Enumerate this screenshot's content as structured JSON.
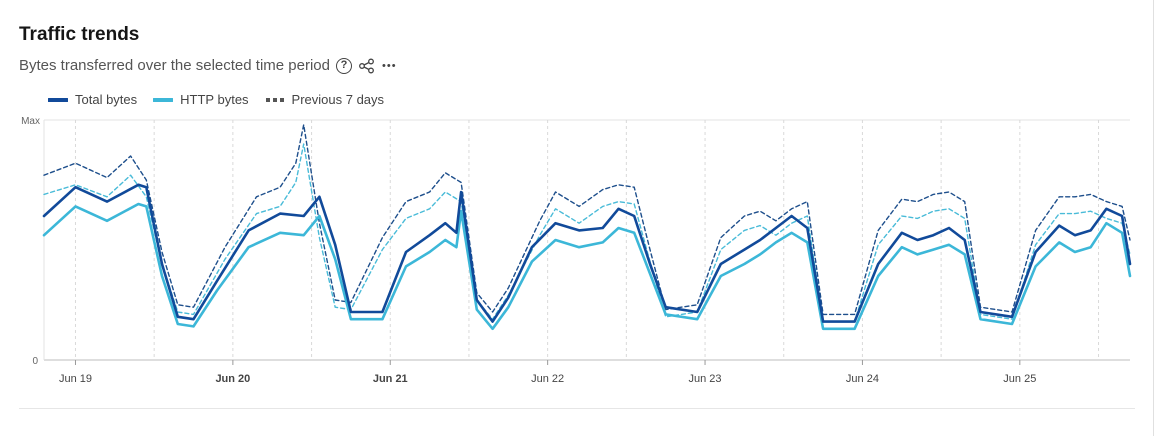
{
  "header": {
    "title": "Traffic trends",
    "subtitle": "Bytes transferred over the selected time period"
  },
  "icons": {
    "help": "help-circle-icon",
    "share": "share-icon",
    "more": "more-horizontal-icon",
    "help_glyph": "?",
    "more_glyph": "•••"
  },
  "colors": {
    "total": "#114a9a",
    "http": "#3cb7d8",
    "prev_total": "#1e4f8c",
    "prev_http": "#49bbd8",
    "grid": "#d9d9d9"
  },
  "chart_data": {
    "type": "line",
    "title": "Traffic trends",
    "subtitle": "Bytes transferred over the selected time period",
    "y_tick_labels": [
      "Max",
      "0"
    ],
    "ylim": [
      0,
      100
    ],
    "x_tick_labels": [
      "Jun 19",
      "Jun 20",
      "Jun 21",
      "Jun 22",
      "Jun 23",
      "Jun 24",
      "Jun 25"
    ],
    "bold_x_ticks": [
      "Jun 20",
      "Jun 21"
    ],
    "x_range_days": [
      18.8,
      25.7
    ],
    "grid": true,
    "legend_position": "top-left",
    "legend": [
      "Total bytes",
      "HTTP bytes",
      "Previous 7 days"
    ],
    "series": [
      {
        "name": "Total bytes",
        "style": "solid",
        "x": [
          18.8,
          19.0,
          19.2,
          19.4,
          19.45,
          19.55,
          19.65,
          19.75,
          19.9,
          20.1,
          20.3,
          20.45,
          20.55,
          20.65,
          20.75,
          20.95,
          21.1,
          21.25,
          21.35,
          21.42,
          21.45,
          21.55,
          21.65,
          21.75,
          21.9,
          22.05,
          22.2,
          22.35,
          22.45,
          22.55,
          22.65,
          22.75,
          22.95,
          23.1,
          23.25,
          23.35,
          23.45,
          23.55,
          23.65,
          23.75,
          23.95,
          24.1,
          24.25,
          24.35,
          24.45,
          24.55,
          24.65,
          24.75,
          24.95,
          25.1,
          25.25,
          25.35,
          25.45,
          25.55,
          25.65,
          25.7
        ],
        "values": [
          60,
          72,
          66,
          73,
          72,
          40,
          18,
          17,
          33,
          54,
          61,
          60,
          68,
          48,
          20,
          20,
          45,
          52,
          57,
          53,
          70,
          25,
          16,
          26,
          47,
          57,
          54,
          55,
          63,
          60,
          40,
          22,
          20,
          40,
          46,
          50,
          55,
          60,
          55,
          16,
          16,
          40,
          53,
          50,
          52,
          55,
          50,
          20,
          18,
          45,
          56,
          52,
          54,
          63,
          60,
          40
        ]
      },
      {
        "name": "HTTP bytes",
        "style": "solid",
        "x": [
          18.8,
          19.0,
          19.2,
          19.4,
          19.45,
          19.55,
          19.65,
          19.75,
          19.9,
          20.1,
          20.3,
          20.45,
          20.55,
          20.65,
          20.75,
          20.95,
          21.1,
          21.25,
          21.35,
          21.42,
          21.45,
          21.55,
          21.65,
          21.75,
          21.9,
          22.05,
          22.2,
          22.35,
          22.45,
          22.55,
          22.65,
          22.75,
          22.95,
          23.1,
          23.25,
          23.35,
          23.45,
          23.55,
          23.65,
          23.75,
          23.95,
          24.1,
          24.25,
          24.35,
          24.45,
          24.55,
          24.65,
          24.75,
          24.95,
          25.1,
          25.25,
          25.35,
          25.45,
          25.55,
          25.65,
          25.7
        ],
        "values": [
          52,
          64,
          58,
          65,
          64,
          35,
          15,
          14,
          29,
          47,
          53,
          52,
          60,
          42,
          17,
          17,
          39,
          45,
          50,
          47,
          62,
          21,
          13,
          22,
          41,
          50,
          47,
          49,
          55,
          53,
          36,
          19,
          17,
          35,
          40,
          44,
          49,
          53,
          49,
          13,
          13,
          35,
          47,
          44,
          46,
          48,
          44,
          17,
          15,
          39,
          49,
          45,
          47,
          57,
          53,
          35
        ]
      },
      {
        "name": "Previous 7 days",
        "style": "dashed",
        "x": [
          18.8,
          19.0,
          19.2,
          19.35,
          19.45,
          19.55,
          19.65,
          19.75,
          19.95,
          20.15,
          20.3,
          20.4,
          20.45,
          20.55,
          20.65,
          20.75,
          20.95,
          21.1,
          21.25,
          21.35,
          21.45,
          21.55,
          21.65,
          21.75,
          21.95,
          22.05,
          22.2,
          22.35,
          22.45,
          22.55,
          22.65,
          22.75,
          22.95,
          23.1,
          23.25,
          23.35,
          23.45,
          23.55,
          23.65,
          23.75,
          23.95,
          24.1,
          24.25,
          24.35,
          24.45,
          24.55,
          24.65,
          24.75,
          24.95,
          25.1,
          25.25,
          25.35,
          25.45,
          25.55,
          25.65,
          25.7
        ],
        "values": [
          77,
          82,
          76,
          85,
          75,
          45,
          23,
          22,
          47,
          68,
          72,
          82,
          98,
          57,
          25,
          24,
          51,
          66,
          70,
          78,
          74,
          28,
          20,
          30,
          58,
          70,
          64,
          71,
          73,
          72,
          46,
          21,
          23,
          51,
          60,
          62,
          58,
          63,
          66,
          19,
          19,
          54,
          67,
          66,
          69,
          70,
          66,
          22,
          20,
          54,
          68,
          68,
          69,
          66,
          64,
          50
        ]
      },
      {
        "name": "Previous 7 days (HTTP bytes)",
        "style": "dashed",
        "x": [
          18.8,
          19.0,
          19.2,
          19.35,
          19.45,
          19.55,
          19.65,
          19.75,
          19.95,
          20.15,
          20.3,
          20.4,
          20.45,
          20.55,
          20.65,
          20.75,
          20.95,
          21.1,
          21.25,
          21.35,
          21.45,
          21.55,
          21.65,
          21.75,
          21.95,
          22.05,
          22.2,
          22.35,
          22.45,
          22.55,
          22.65,
          22.75,
          22.95,
          23.1,
          23.25,
          23.35,
          23.45,
          23.55,
          23.65,
          23.75,
          23.95,
          24.1,
          24.25,
          24.35,
          24.45,
          24.55,
          24.65,
          24.75,
          24.95,
          25.1,
          25.25,
          25.35,
          25.45,
          25.55,
          25.65,
          25.7
        ],
        "values": [
          69,
          73,
          68,
          77,
          68,
          40,
          20,
          19,
          42,
          61,
          64,
          74,
          90,
          51,
          22,
          21,
          46,
          59,
          63,
          70,
          66,
          25,
          17,
          27,
          52,
          63,
          57,
          64,
          66,
          65,
          41,
          18,
          20,
          46,
          54,
          56,
          52,
          57,
          60,
          16,
          16,
          48,
          60,
          59,
          62,
          63,
          59,
          19,
          17,
          48,
          61,
          61,
          62,
          59,
          57,
          44
        ]
      }
    ]
  }
}
